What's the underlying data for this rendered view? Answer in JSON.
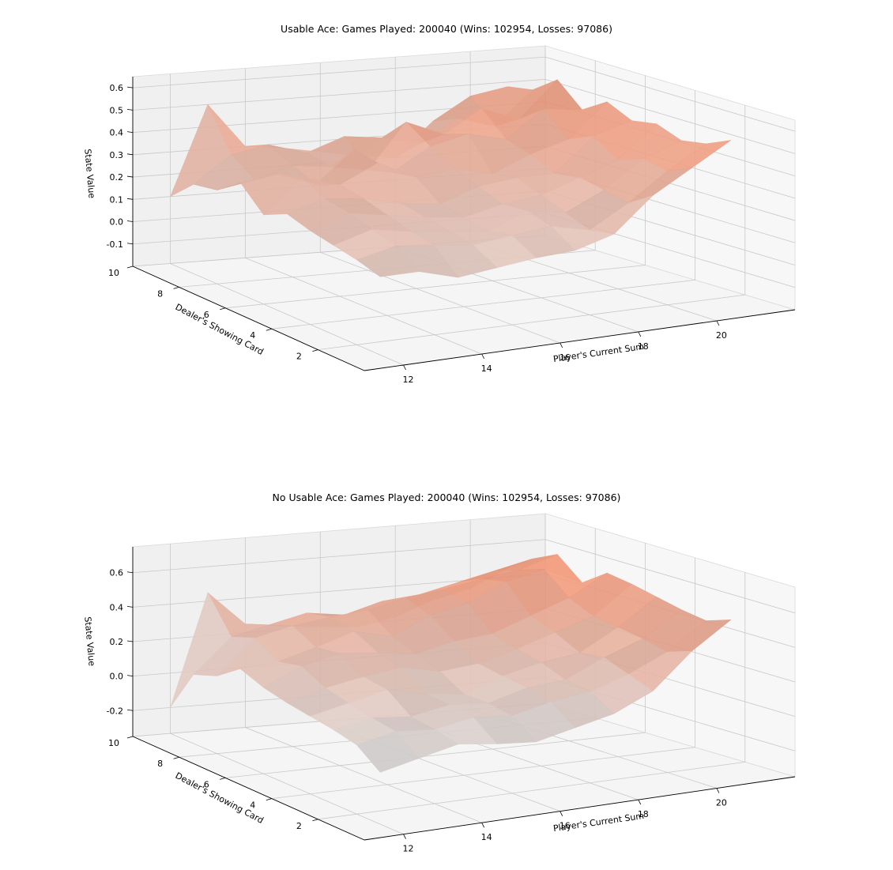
{
  "chart_data": [
    {
      "type": "surface",
      "title": "Usable Ace: Games Played: 200040 (Wins: 102954, Losses: 97086)",
      "xlabel": "Player's Current Sum",
      "ylabel": "Dealer's Showing Card",
      "zlabel": "State Value",
      "x": [
        12,
        13,
        14,
        15,
        16,
        17,
        18,
        19,
        20,
        21
      ],
      "y": [
        1,
        2,
        3,
        4,
        5,
        6,
        7,
        8,
        9,
        10
      ],
      "xticks": [
        12,
        14,
        16,
        18,
        20
      ],
      "yticks": [
        2,
        4,
        6,
        8,
        10
      ],
      "zticks": [
        -0.1,
        0.0,
        0.1,
        0.2,
        0.3,
        0.4,
        0.5,
        0.6
      ],
      "xlim": [
        11,
        22
      ],
      "ylim": [
        0,
        10
      ],
      "zlim": [
        -0.2,
        0.65
      ],
      "colormap": "coolwarm",
      "z": [
        [
          0.15,
          0.15,
          0.1,
          0.12,
          0.14,
          0.15,
          0.2,
          0.35,
          0.45,
          0.55
        ],
        [
          0.18,
          0.22,
          0.2,
          0.18,
          0.2,
          0.22,
          0.18,
          0.28,
          0.4,
          0.5
        ],
        [
          0.2,
          0.25,
          0.22,
          0.2,
          0.18,
          0.25,
          0.22,
          0.3,
          0.42,
          0.48
        ],
        [
          0.22,
          0.28,
          0.25,
          0.22,
          0.2,
          0.24,
          0.26,
          0.32,
          0.38,
          0.52
        ],
        [
          0.25,
          0.3,
          0.28,
          0.24,
          0.22,
          0.28,
          0.3,
          0.3,
          0.45,
          0.5
        ],
        [
          0.2,
          0.35,
          0.3,
          0.38,
          0.3,
          0.32,
          0.28,
          0.35,
          0.4,
          0.55
        ],
        [
          0.3,
          0.32,
          0.26,
          0.4,
          0.28,
          0.38,
          0.42,
          0.38,
          0.5,
          0.48
        ],
        [
          0.22,
          0.25,
          0.3,
          0.28,
          0.25,
          0.45,
          0.38,
          0.48,
          0.42,
          0.58
        ],
        [
          0.2,
          0.32,
          0.35,
          0.3,
          0.36,
          0.34,
          0.3,
          0.4,
          0.35,
          0.5
        ],
        [
          0.1,
          0.5,
          0.3,
          0.28,
          0.25,
          0.22,
          0.2,
          0.35,
          0.45,
          0.48
        ]
      ]
    },
    {
      "type": "surface",
      "title": "No Usable Ace: Games Played: 200040 (Wins: 102954, Losses: 97086)",
      "xlabel": "Player's Current Sum",
      "ylabel": "Dealer's Showing Card",
      "zlabel": "State Value",
      "x": [
        12,
        13,
        14,
        15,
        16,
        17,
        18,
        19,
        20,
        21
      ],
      "y": [
        1,
        2,
        3,
        4,
        5,
        6,
        7,
        8,
        9,
        10
      ],
      "xticks": [
        12,
        14,
        16,
        18,
        20
      ],
      "yticks": [
        2,
        4,
        6,
        8,
        10
      ],
      "zticks": [
        -0.2,
        0.0,
        0.2,
        0.4,
        0.6
      ],
      "xlim": [
        11,
        22
      ],
      "ylim": [
        0,
        10
      ],
      "zlim": [
        -0.35,
        0.75
      ],
      "colormap": "coolwarm",
      "z": [
        [
          -0.05,
          0.0,
          0.05,
          0.02,
          0.0,
          0.05,
          0.1,
          0.2,
          0.4,
          0.55
        ],
        [
          0.05,
          0.1,
          0.08,
          0.12,
          0.1,
          0.15,
          0.18,
          0.25,
          0.35,
          0.5
        ],
        [
          0.08,
          0.12,
          0.1,
          0.14,
          0.12,
          0.18,
          0.2,
          0.3,
          0.38,
          0.52
        ],
        [
          0.1,
          0.15,
          0.2,
          0.15,
          0.12,
          0.2,
          0.25,
          0.28,
          0.4,
          0.55
        ],
        [
          0.12,
          0.18,
          0.22,
          0.25,
          0.2,
          0.22,
          0.28,
          0.35,
          0.42,
          0.58
        ],
        [
          0.15,
          0.25,
          0.3,
          0.28,
          0.25,
          0.3,
          0.32,
          0.4,
          0.48,
          0.6
        ],
        [
          0.2,
          0.22,
          0.28,
          0.35,
          0.3,
          0.4,
          0.45,
          0.55,
          0.6,
          0.5
        ],
        [
          0.1,
          0.3,
          0.35,
          0.38,
          0.4,
          0.45,
          0.48,
          0.52,
          0.55,
          0.62
        ],
        [
          0.05,
          0.25,
          0.3,
          0.35,
          0.32,
          0.38,
          0.4,
          0.45,
          0.5,
          0.55
        ],
        [
          -0.2,
          0.45,
          0.25,
          0.22,
          0.2,
          0.18,
          0.22,
          0.3,
          0.35,
          0.45
        ]
      ]
    }
  ]
}
